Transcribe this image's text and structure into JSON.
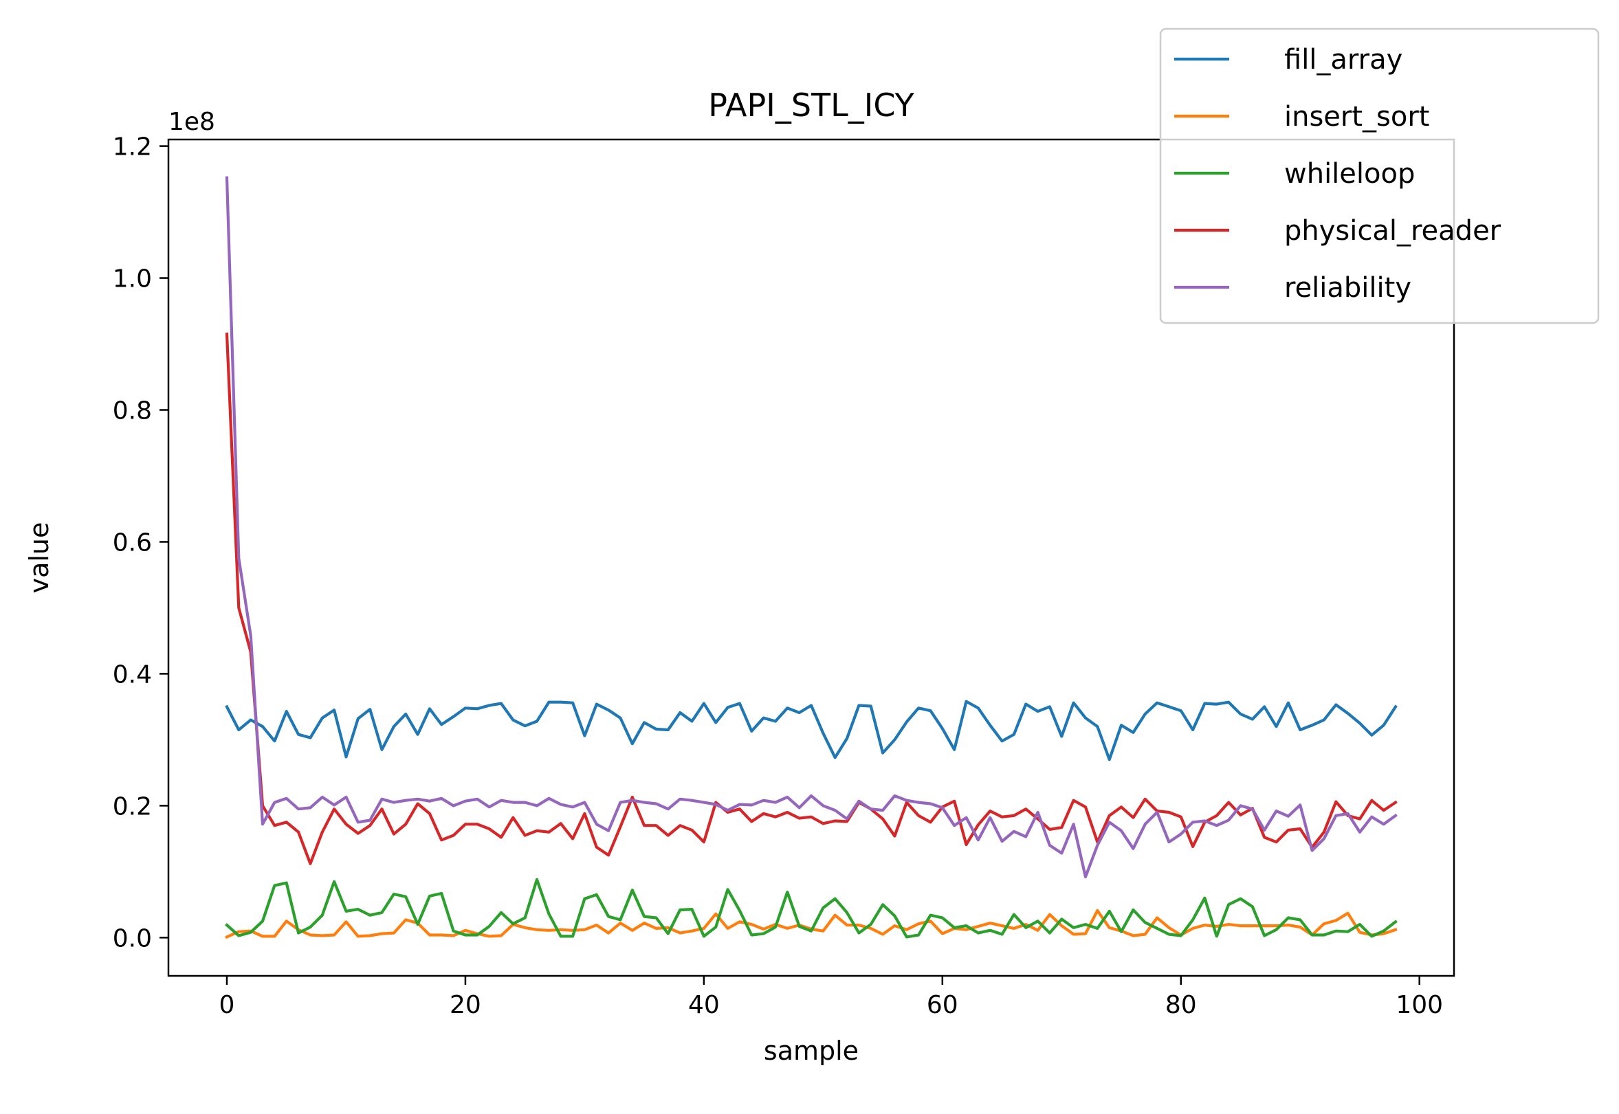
{
  "chart_data": {
    "type": "line",
    "title": "PAPI_STL_ICY",
    "xlabel": "sample",
    "ylabel": "value",
    "y_scale_label": "1e8",
    "y_multiplier": 100000000,
    "xlim": [
      -4.9,
      102.9
    ],
    "ylim": [
      -0.058,
      1.21
    ],
    "x_ticks": [
      0,
      20,
      40,
      60,
      80,
      100
    ],
    "x_tick_labels": [
      "0",
      "20",
      "40",
      "60",
      "80",
      "100"
    ],
    "y_ticks": [
      0.0,
      0.2,
      0.4,
      0.6,
      0.8,
      1.0,
      1.2
    ],
    "y_tick_labels": [
      "0.0",
      "0.2",
      "0.4",
      "0.6",
      "0.8",
      "1.0",
      "1.2"
    ],
    "grid": false,
    "legend_position": "upper right, outside",
    "series": [
      {
        "name": "fill_array",
        "color": "#1f77b4",
        "values": [
          0.35,
          0.315,
          0.33,
          0.32,
          0.298,
          0.343,
          0.308,
          0.303,
          0.333,
          0.345,
          0.274,
          0.332,
          0.346,
          0.285,
          0.32,
          0.339,
          0.308,
          0.347,
          0.323,
          0.335,
          0.348,
          0.347,
          0.352,
          0.355,
          0.33,
          0.321,
          0.328,
          0.357,
          0.357,
          0.356,
          0.306,
          0.354,
          0.345,
          0.333,
          0.294,
          0.326,
          0.316,
          0.315,
          0.341,
          0.328,
          0.355,
          0.326,
          0.349,
          0.355,
          0.313,
          0.333,
          0.328,
          0.348,
          0.341,
          0.352,
          0.31,
          0.273,
          0.302,
          0.352,
          0.351,
          0.28,
          0.3,
          0.327,
          0.348,
          0.344,
          0.317,
          0.285,
          0.358,
          0.348,
          0.322,
          0.298,
          0.308,
          0.354,
          0.343,
          0.35,
          0.305,
          0.356,
          0.333,
          0.32,
          0.27,
          0.322,
          0.311,
          0.339,
          0.356,
          0.35,
          0.344,
          0.315,
          0.355,
          0.354,
          0.357,
          0.339,
          0.331,
          0.35,
          0.32,
          0.356,
          0.315,
          0.322,
          0.33,
          0.353,
          0.34,
          0.325,
          0.307,
          0.322,
          0.35
        ]
      },
      {
        "name": "insert_sort",
        "color": "#ff7f0e",
        "values": [
          0.001,
          0.009,
          0.01,
          0.002,
          0.002,
          0.025,
          0.012,
          0.004,
          0.003,
          0.004,
          0.024,
          0.002,
          0.003,
          0.006,
          0.007,
          0.027,
          0.022,
          0.004,
          0.004,
          0.003,
          0.011,
          0.006,
          0.002,
          0.003,
          0.02,
          0.015,
          0.012,
          0.011,
          0.012,
          0.011,
          0.012,
          0.019,
          0.007,
          0.022,
          0.011,
          0.022,
          0.014,
          0.015,
          0.007,
          0.01,
          0.014,
          0.036,
          0.014,
          0.024,
          0.02,
          0.013,
          0.02,
          0.014,
          0.019,
          0.013,
          0.01,
          0.034,
          0.019,
          0.019,
          0.014,
          0.005,
          0.018,
          0.012,
          0.021,
          0.025,
          0.006,
          0.014,
          0.012,
          0.017,
          0.022,
          0.018,
          0.014,
          0.02,
          0.011,
          0.035,
          0.018,
          0.005,
          0.006,
          0.041,
          0.015,
          0.01,
          0.003,
          0.005,
          0.03,
          0.015,
          0.004,
          0.014,
          0.019,
          0.017,
          0.02,
          0.018,
          0.018,
          0.018,
          0.018,
          0.019,
          0.016,
          0.004,
          0.021,
          0.026,
          0.037,
          0.008,
          0.004,
          0.006,
          0.012
        ]
      },
      {
        "name": "whileloop",
        "color": "#2ca02c",
        "values": [
          0.019,
          0.003,
          0.008,
          0.025,
          0.079,
          0.083,
          0.007,
          0.016,
          0.034,
          0.085,
          0.04,
          0.043,
          0.034,
          0.038,
          0.066,
          0.062,
          0.02,
          0.063,
          0.067,
          0.01,
          0.004,
          0.004,
          0.017,
          0.038,
          0.021,
          0.03,
          0.088,
          0.036,
          0.002,
          0.002,
          0.059,
          0.065,
          0.032,
          0.027,
          0.072,
          0.032,
          0.03,
          0.006,
          0.042,
          0.043,
          0.002,
          0.016,
          0.073,
          0.041,
          0.004,
          0.006,
          0.016,
          0.069,
          0.017,
          0.01,
          0.045,
          0.059,
          0.038,
          0.007,
          0.02,
          0.05,
          0.033,
          0.001,
          0.004,
          0.034,
          0.03,
          0.015,
          0.018,
          0.007,
          0.011,
          0.005,
          0.035,
          0.015,
          0.025,
          0.007,
          0.028,
          0.015,
          0.02,
          0.014,
          0.04,
          0.009,
          0.042,
          0.023,
          0.014,
          0.005,
          0.003,
          0.027,
          0.06,
          0.002,
          0.05,
          0.059,
          0.047,
          0.003,
          0.012,
          0.03,
          0.027,
          0.004,
          0.004,
          0.01,
          0.009,
          0.02,
          0.002,
          0.01,
          0.024
        ]
      },
      {
        "name": "physical_reader",
        "color": "#d62728",
        "values": [
          0.915,
          0.5,
          0.433,
          0.2,
          0.17,
          0.175,
          0.16,
          0.112,
          0.16,
          0.195,
          0.172,
          0.158,
          0.17,
          0.195,
          0.157,
          0.172,
          0.203,
          0.188,
          0.148,
          0.155,
          0.172,
          0.172,
          0.165,
          0.152,
          0.182,
          0.155,
          0.162,
          0.16,
          0.173,
          0.15,
          0.188,
          0.137,
          0.125,
          0.168,
          0.213,
          0.17,
          0.17,
          0.155,
          0.17,
          0.163,
          0.145,
          0.205,
          0.19,
          0.195,
          0.176,
          0.188,
          0.183,
          0.19,
          0.181,
          0.183,
          0.173,
          0.177,
          0.176,
          0.205,
          0.195,
          0.18,
          0.154,
          0.205,
          0.185,
          0.175,
          0.198,
          0.207,
          0.141,
          0.171,
          0.192,
          0.183,
          0.185,
          0.195,
          0.18,
          0.164,
          0.167,
          0.208,
          0.198,
          0.145,
          0.185,
          0.198,
          0.182,
          0.21,
          0.192,
          0.19,
          0.183,
          0.138,
          0.175,
          0.185,
          0.205,
          0.186,
          0.196,
          0.152,
          0.145,
          0.163,
          0.165,
          0.137,
          0.16,
          0.206,
          0.185,
          0.18,
          0.208,
          0.193,
          0.205
        ]
      },
      {
        "name": "reliability",
        "color": "#9467bd",
        "values": [
          1.152,
          0.575,
          0.458,
          0.172,
          0.205,
          0.211,
          0.195,
          0.197,
          0.213,
          0.201,
          0.213,
          0.175,
          0.178,
          0.21,
          0.205,
          0.208,
          0.21,
          0.207,
          0.211,
          0.2,
          0.207,
          0.21,
          0.198,
          0.208,
          0.205,
          0.205,
          0.2,
          0.211,
          0.202,
          0.198,
          0.205,
          0.172,
          0.162,
          0.205,
          0.208,
          0.205,
          0.203,
          0.195,
          0.21,
          0.208,
          0.205,
          0.202,
          0.193,
          0.202,
          0.201,
          0.208,
          0.205,
          0.213,
          0.197,
          0.215,
          0.2,
          0.193,
          0.18,
          0.207,
          0.195,
          0.193,
          0.215,
          0.208,
          0.205,
          0.203,
          0.197,
          0.17,
          0.182,
          0.148,
          0.182,
          0.146,
          0.161,
          0.153,
          0.19,
          0.14,
          0.128,
          0.172,
          0.092,
          0.14,
          0.175,
          0.162,
          0.135,
          0.172,
          0.19,
          0.145,
          0.157,
          0.175,
          0.177,
          0.17,
          0.178,
          0.2,
          0.195,
          0.163,
          0.192,
          0.184,
          0.201,
          0.132,
          0.15,
          0.185,
          0.188,
          0.16,
          0.183,
          0.172,
          0.185
        ]
      }
    ]
  }
}
